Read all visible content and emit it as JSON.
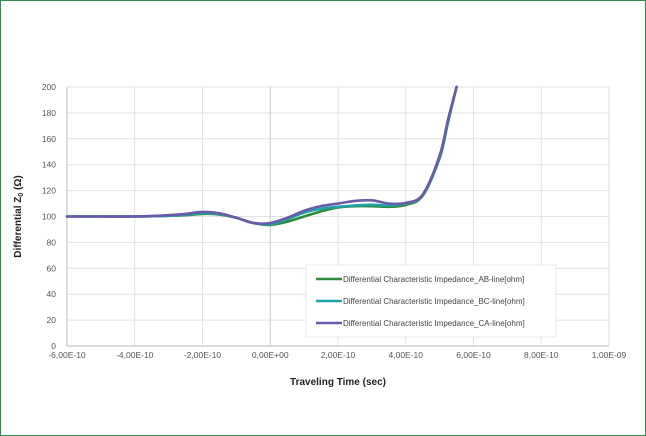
{
  "chart_data": {
    "type": "line",
    "title": "",
    "xlabel": "Traveling Time (sec)",
    "ylabel_main": "Differential Z",
    "ylabel_sub": "0",
    "ylabel_tail": " (Ω)",
    "xlim": [
      -6e-10,
      1e-09
    ],
    "ylim": [
      0,
      200
    ],
    "x_ticks": [
      -6e-10,
      -4e-10,
      -2e-10,
      0,
      2e-10,
      4e-10,
      6e-10,
      8e-10,
      1e-09
    ],
    "x_tick_labels": [
      "-6,00E-10",
      "-4,00E-10",
      "-2,00E-10",
      "0,00E+00",
      "2,00E-10",
      "4,00E-10",
      "6,00E-10",
      "8,00E-10",
      "1,00E-09"
    ],
    "y_ticks": [
      0,
      20,
      40,
      60,
      80,
      100,
      120,
      140,
      160,
      180,
      200
    ],
    "y_tick_labels": [
      "0",
      "20",
      "40",
      "60",
      "80",
      "100",
      "120",
      "140",
      "160",
      "180",
      "200"
    ],
    "grid": true,
    "legend_position": "bottom-right",
    "series": [
      {
        "name": "Differential Characteristic Impedance_AB-line[ohm]",
        "color": "#2e8b3a",
        "x": [
          -6e-10,
          -5e-10,
          -4e-10,
          -3e-10,
          -2.5e-10,
          -2e-10,
          -1.5e-10,
          -1e-10,
          -5e-11,
          0,
          5e-11,
          1e-10,
          1.5e-10,
          2e-10,
          2.5e-10,
          3e-10,
          3.5e-10,
          4e-10,
          4.5e-10,
          5e-10,
          5.25e-10,
          5.5e-10
        ],
        "y": [
          100,
          100,
          100,
          100.5,
          101,
          102,
          101.5,
          99,
          95,
          93.5,
          96,
          100,
          104,
          107,
          108,
          108,
          107.5,
          109,
          116,
          145,
          173,
          200
        ]
      },
      {
        "name": "Differential Characteristic Impedance_BC-line[ohm]",
        "color": "#1ea3a8",
        "x": [
          -6e-10,
          -5e-10,
          -4e-10,
          -3e-10,
          -2.5e-10,
          -2e-10,
          -1.5e-10,
          -1e-10,
          -5e-11,
          0,
          5e-11,
          1e-10,
          1.5e-10,
          2e-10,
          2.5e-10,
          3e-10,
          3.5e-10,
          4e-10,
          4.5e-10,
          5e-10,
          5.25e-10,
          5.5e-10
        ],
        "y": [
          100,
          100,
          100,
          100.5,
          101.5,
          102.5,
          102,
          99,
          95,
          94,
          98,
          103,
          106,
          107.5,
          108.5,
          109,
          108.5,
          110,
          116.5,
          146,
          174,
          200
        ]
      },
      {
        "name": "Differential Characteristic Impedance_CA-line[ohm]",
        "color": "#6a5aa8",
        "x": [
          -6e-10,
          -5e-10,
          -4e-10,
          -3e-10,
          -2.5e-10,
          -2e-10,
          -1.5e-10,
          -1e-10,
          -5e-11,
          0,
          5e-11,
          1e-10,
          1.5e-10,
          2e-10,
          2.5e-10,
          3e-10,
          3.5e-10,
          4e-10,
          4.5e-10,
          5e-10,
          5.25e-10,
          5.5e-10
        ],
        "y": [
          100,
          100,
          100,
          101,
          102,
          103.5,
          102.5,
          99,
          95,
          95,
          99,
          104.5,
          108,
          110,
          112,
          112.5,
          110,
          110.5,
          117,
          147,
          175,
          200
        ]
      }
    ]
  }
}
